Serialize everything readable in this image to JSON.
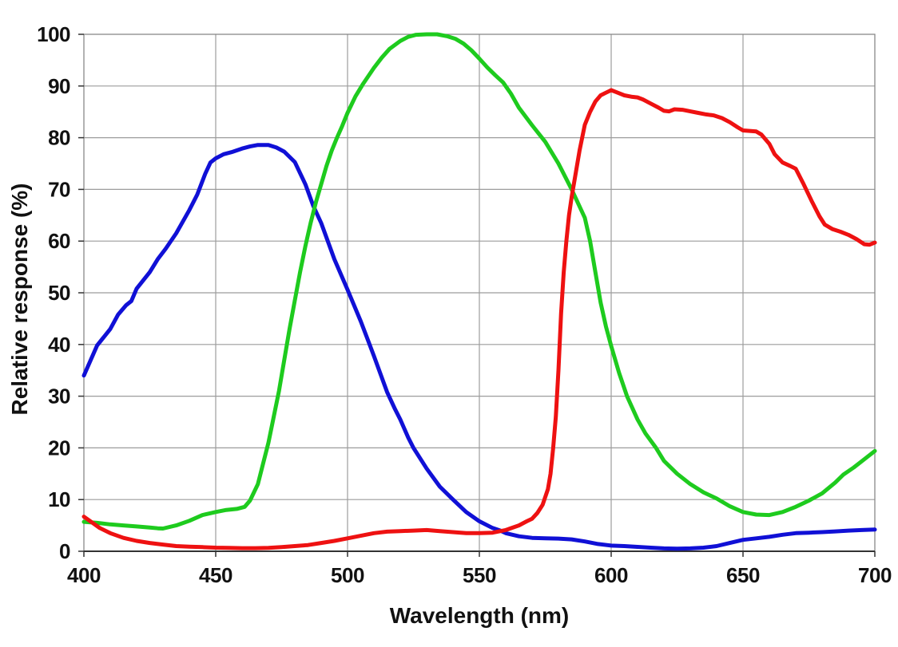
{
  "chart_data": {
    "type": "line",
    "title": "",
    "xlabel": "Wavelength (nm)",
    "ylabel": "Relative response (%)",
    "xlim": [
      400,
      700
    ],
    "ylim": [
      0,
      100
    ],
    "x_ticks": [
      400,
      450,
      500,
      550,
      600,
      650,
      700
    ],
    "y_ticks": [
      0,
      10,
      20,
      30,
      40,
      50,
      60,
      70,
      80,
      90,
      100
    ],
    "grid": true,
    "legend_position": "none",
    "styles": {
      "background": "#ffffff",
      "grid_color": "#9c9c9c",
      "frame_color": "#888888",
      "axis_color": "#333333",
      "label_color": "#111111"
    },
    "series": [
      {
        "name": "blue-channel",
        "color": "#1010d6",
        "points": [
          [
            400,
            34
          ],
          [
            405,
            39.8
          ],
          [
            410,
            43
          ],
          [
            413,
            45.8
          ],
          [
            416,
            47.6
          ],
          [
            418,
            48.4
          ],
          [
            420,
            50.8
          ],
          [
            425,
            54
          ],
          [
            428,
            56.5
          ],
          [
            431,
            58.5
          ],
          [
            435,
            61.5
          ],
          [
            440,
            66
          ],
          [
            443,
            69
          ],
          [
            446,
            73
          ],
          [
            448,
            75.2
          ],
          [
            450,
            76
          ],
          [
            453,
            76.8
          ],
          [
            456,
            77.2
          ],
          [
            460,
            77.9
          ],
          [
            463,
            78.3
          ],
          [
            466,
            78.6
          ],
          [
            470,
            78.6
          ],
          [
            473,
            78.1
          ],
          [
            476,
            77.3
          ],
          [
            480,
            75.3
          ],
          [
            484,
            71
          ],
          [
            487,
            66.8
          ],
          [
            490,
            63.5
          ],
          [
            495,
            56.5
          ],
          [
            500,
            50.6
          ],
          [
            505,
            44.5
          ],
          [
            508,
            40.5
          ],
          [
            510,
            37.8
          ],
          [
            515,
            30.8
          ],
          [
            518,
            27.5
          ],
          [
            520,
            25.5
          ],
          [
            523,
            22
          ],
          [
            525,
            20
          ],
          [
            530,
            16
          ],
          [
            535,
            12.5
          ],
          [
            540,
            10
          ],
          [
            545,
            7.6
          ],
          [
            550,
            5.8
          ],
          [
            555,
            4.5
          ],
          [
            558,
            4
          ],
          [
            560,
            3.5
          ],
          [
            565,
            2.9
          ],
          [
            570,
            2.6
          ],
          [
            575,
            2.5
          ],
          [
            580,
            2.45
          ],
          [
            585,
            2.3
          ],
          [
            590,
            1.9
          ],
          [
            595,
            1.4
          ],
          [
            600,
            1.1
          ],
          [
            605,
            1
          ],
          [
            610,
            0.85
          ],
          [
            615,
            0.7
          ],
          [
            620,
            0.55
          ],
          [
            625,
            0.5
          ],
          [
            630,
            0.55
          ],
          [
            635,
            0.7
          ],
          [
            640,
            1
          ],
          [
            645,
            1.6
          ],
          [
            650,
            2.2
          ],
          [
            655,
            2.5
          ],
          [
            660,
            2.8
          ],
          [
            665,
            3.2
          ],
          [
            670,
            3.5
          ],
          [
            675,
            3.6
          ],
          [
            680,
            3.7
          ],
          [
            685,
            3.85
          ],
          [
            690,
            4
          ],
          [
            695,
            4.1
          ],
          [
            700,
            4.2
          ]
        ]
      },
      {
        "name": "green-channel",
        "color": "#1ecb1e",
        "points": [
          [
            400,
            5.7
          ],
          [
            405,
            5.5
          ],
          [
            410,
            5.2
          ],
          [
            415,
            5
          ],
          [
            420,
            4.8
          ],
          [
            425,
            4.6
          ],
          [
            428,
            4.45
          ],
          [
            430,
            4.4
          ],
          [
            435,
            5
          ],
          [
            440,
            5.9
          ],
          [
            445,
            7
          ],
          [
            450,
            7.6
          ],
          [
            454,
            8
          ],
          [
            458,
            8.2
          ],
          [
            461,
            8.6
          ],
          [
            463,
            9.8
          ],
          [
            466,
            13
          ],
          [
            468,
            17
          ],
          [
            470,
            21
          ],
          [
            472,
            26
          ],
          [
            474,
            31
          ],
          [
            476,
            37
          ],
          [
            478,
            43
          ],
          [
            480,
            48.5
          ],
          [
            482,
            54
          ],
          [
            484,
            59
          ],
          [
            486,
            63.5
          ],
          [
            488,
            67.5
          ],
          [
            490,
            71
          ],
          [
            492,
            74.5
          ],
          [
            494,
            77.5
          ],
          [
            496,
            80
          ],
          [
            498,
            82.3
          ],
          [
            500,
            84.8
          ],
          [
            503,
            88
          ],
          [
            506,
            90.5
          ],
          [
            510,
            93.5
          ],
          [
            513,
            95.5
          ],
          [
            516,
            97.2
          ],
          [
            520,
            98.7
          ],
          [
            523,
            99.5
          ],
          [
            526,
            99.9
          ],
          [
            530,
            100
          ],
          [
            534,
            100
          ],
          [
            538,
            99.6
          ],
          [
            541,
            99.1
          ],
          [
            544,
            98.2
          ],
          [
            547,
            96.9
          ],
          [
            550,
            95.3
          ],
          [
            553,
            93.6
          ],
          [
            556,
            92.1
          ],
          [
            559,
            90.7
          ],
          [
            562,
            88.5
          ],
          [
            565,
            85.8
          ],
          [
            570,
            82.4
          ],
          [
            575,
            79.2
          ],
          [
            580,
            75
          ],
          [
            585,
            70
          ],
          [
            590,
            64.5
          ],
          [
            592,
            60
          ],
          [
            594,
            54
          ],
          [
            596,
            48.1
          ],
          [
            598,
            43.5
          ],
          [
            600,
            39.7
          ],
          [
            603,
            34.5
          ],
          [
            606,
            30
          ],
          [
            610,
            25.5
          ],
          [
            613,
            22.8
          ],
          [
            617,
            20
          ],
          [
            620,
            17.5
          ],
          [
            625,
            15
          ],
          [
            630,
            13
          ],
          [
            635,
            11.4
          ],
          [
            640,
            10.2
          ],
          [
            645,
            8.7
          ],
          [
            650,
            7.6
          ],
          [
            655,
            7.1
          ],
          [
            660,
            7
          ],
          [
            665,
            7.6
          ],
          [
            670,
            8.6
          ],
          [
            675,
            9.8
          ],
          [
            680,
            11.2
          ],
          [
            685,
            13.3
          ],
          [
            688,
            14.8
          ],
          [
            692,
            16.2
          ],
          [
            696,
            17.8
          ],
          [
            700,
            19.4
          ]
        ]
      },
      {
        "name": "red-channel",
        "color": "#ee1111",
        "points": [
          [
            400,
            6.7
          ],
          [
            403,
            5.6
          ],
          [
            406,
            4.5
          ],
          [
            410,
            3.5
          ],
          [
            415,
            2.6
          ],
          [
            420,
            2
          ],
          [
            425,
            1.6
          ],
          [
            430,
            1.3
          ],
          [
            435,
            1
          ],
          [
            440,
            0.9
          ],
          [
            445,
            0.8
          ],
          [
            450,
            0.7
          ],
          [
            455,
            0.65
          ],
          [
            460,
            0.6
          ],
          [
            465,
            0.6
          ],
          [
            470,
            0.65
          ],
          [
            475,
            0.8
          ],
          [
            480,
            1
          ],
          [
            485,
            1.2
          ],
          [
            490,
            1.6
          ],
          [
            495,
            2
          ],
          [
            500,
            2.5
          ],
          [
            505,
            3
          ],
          [
            510,
            3.5
          ],
          [
            515,
            3.8
          ],
          [
            520,
            3.9
          ],
          [
            525,
            4
          ],
          [
            530,
            4.1
          ],
          [
            535,
            3.9
          ],
          [
            540,
            3.7
          ],
          [
            545,
            3.5
          ],
          [
            550,
            3.5
          ],
          [
            555,
            3.6
          ],
          [
            560,
            4.1
          ],
          [
            565,
            5
          ],
          [
            568,
            5.8
          ],
          [
            570,
            6.3
          ],
          [
            572,
            7.4
          ],
          [
            574,
            9
          ],
          [
            576,
            12
          ],
          [
            577,
            15
          ],
          [
            578,
            20
          ],
          [
            579,
            26
          ],
          [
            580,
            35
          ],
          [
            581,
            46
          ],
          [
            582,
            54
          ],
          [
            583,
            60
          ],
          [
            584,
            65
          ],
          [
            585,
            68.5
          ],
          [
            586,
            71.5
          ],
          [
            588,
            77.5
          ],
          [
            590,
            82.5
          ],
          [
            592,
            85
          ],
          [
            594,
            87
          ],
          [
            596,
            88.2
          ],
          [
            598,
            88.7
          ],
          [
            600,
            89.2
          ],
          [
            602,
            88.8
          ],
          [
            605,
            88.2
          ],
          [
            608,
            87.9
          ],
          [
            610,
            87.8
          ],
          [
            612,
            87.4
          ],
          [
            615,
            86.6
          ],
          [
            618,
            85.8
          ],
          [
            620,
            85.2
          ],
          [
            622,
            85.1
          ],
          [
            624,
            85.5
          ],
          [
            627,
            85.4
          ],
          [
            630,
            85.1
          ],
          [
            633,
            84.8
          ],
          [
            636,
            84.5
          ],
          [
            639,
            84.3
          ],
          [
            642,
            83.8
          ],
          [
            645,
            83
          ],
          [
            648,
            82
          ],
          [
            650,
            81.4
          ],
          [
            653,
            81.3
          ],
          [
            655,
            81.2
          ],
          [
            657,
            80.6
          ],
          [
            660,
            78.8
          ],
          [
            662,
            76.8
          ],
          [
            665,
            75.2
          ],
          [
            668,
            74.5
          ],
          [
            670,
            74
          ],
          [
            673,
            71
          ],
          [
            676,
            67.8
          ],
          [
            679,
            64.8
          ],
          [
            681,
            63.2
          ],
          [
            684,
            62.3
          ],
          [
            687,
            61.8
          ],
          [
            690,
            61.2
          ],
          [
            693,
            60.4
          ],
          [
            696,
            59.4
          ],
          [
            698,
            59.3
          ],
          [
            700,
            59.7
          ]
        ]
      }
    ]
  }
}
